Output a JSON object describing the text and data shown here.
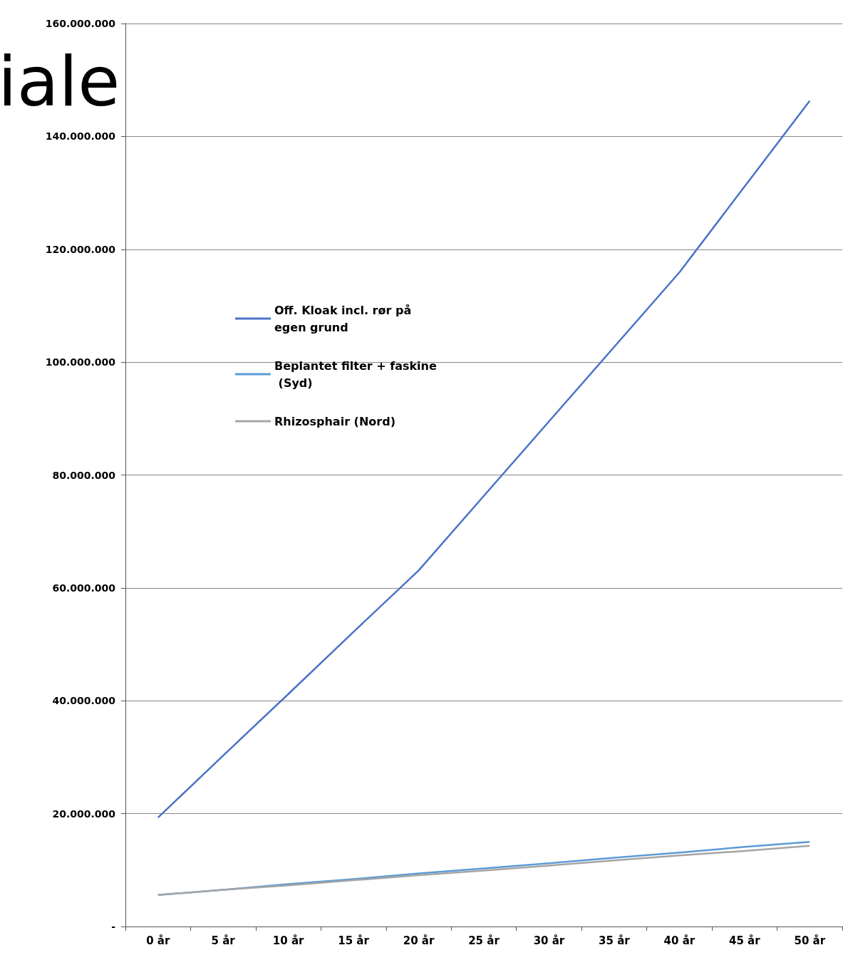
{
  "chart_data": {
    "type": "line",
    "title": "iale",
    "categories": [
      "0 år",
      "5 år",
      "10 år",
      "15 år",
      "20 år",
      "25 år",
      "30 år",
      "35 år",
      "40 år",
      "45 år",
      "50 år"
    ],
    "series": [
      {
        "name": "Off. Kloak incl. rør på egen grund",
        "color": "#4a72c8",
        "values": [
          19300000,
          30300000,
          41200000,
          52200000,
          63100000,
          76300000,
          89500000,
          102700000,
          115900000,
          131100000,
          146300000
        ]
      },
      {
        "name": "Beplantet filter + faskine (Syd)",
        "color": "#5b9bd5",
        "values": [
          5600000,
          6500000,
          7500000,
          8400000,
          9400000,
          10300000,
          11200000,
          12200000,
          13100000,
          14100000,
          15000000
        ]
      },
      {
        "name": "Rhizosphair (Nord)",
        "color": "#a5a5a5",
        "values": [
          5600000,
          6500000,
          7300000,
          8200000,
          9100000,
          9900000,
          10800000,
          11700000,
          12600000,
          13400000,
          14300000
        ]
      }
    ],
    "ylim": [
      0,
      160000000
    ],
    "yticks": [
      {
        "value": 0,
        "label": "-"
      },
      {
        "value": 20000000,
        "label": "20.000.000"
      },
      {
        "value": 40000000,
        "label": "40.000.000"
      },
      {
        "value": 60000000,
        "label": "60.000.000"
      },
      {
        "value": 80000000,
        "label": "80.000.000"
      },
      {
        "value": 100000000,
        "label": "100.000.000"
      },
      {
        "value": 120000000,
        "label": "120.000.000"
      },
      {
        "value": 140000000,
        "label": "140.000.000"
      },
      {
        "value": 160000000,
        "label": "160.000.000"
      }
    ],
    "grid": "y",
    "legend": "left",
    "marker": "none",
    "line_style": "solid"
  }
}
